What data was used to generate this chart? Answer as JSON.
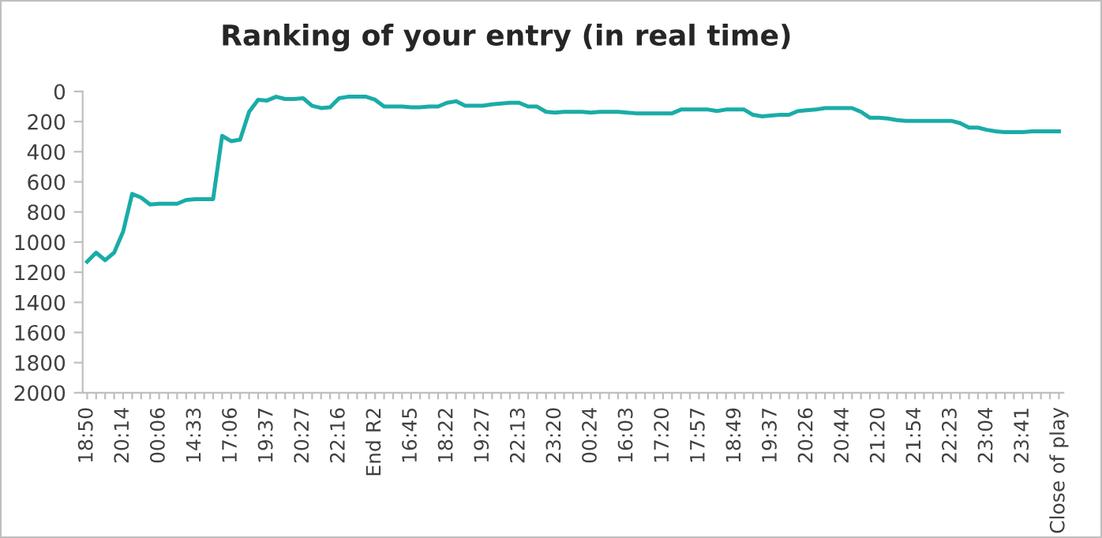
{
  "chart_data": {
    "type": "line",
    "title": "Ranking of your entry (in real time)",
    "categories": [
      "18:50",
      null,
      null,
      null,
      "20:14",
      null,
      null,
      null,
      "00:06",
      null,
      null,
      null,
      "14:33",
      null,
      null,
      null,
      "17:06",
      null,
      null,
      null,
      "19:37",
      null,
      null,
      null,
      "20:27",
      null,
      null,
      null,
      "22:16",
      null,
      null,
      null,
      "End R2",
      null,
      null,
      null,
      "16:45",
      null,
      null,
      null,
      "18:22",
      null,
      null,
      null,
      "19:27",
      null,
      null,
      null,
      "22:13",
      null,
      null,
      null,
      "23:20",
      null,
      null,
      null,
      "00:24",
      null,
      null,
      null,
      "16:03",
      null,
      null,
      null,
      "17:20",
      null,
      null,
      null,
      "17:57",
      null,
      null,
      null,
      "18:49",
      null,
      null,
      null,
      "19:37",
      null,
      null,
      null,
      "20:26",
      null,
      null,
      null,
      "20:44",
      null,
      null,
      null,
      "21:20",
      null,
      null,
      null,
      "21:54",
      null,
      null,
      null,
      "22:23",
      null,
      null,
      null,
      "23:04",
      null,
      null,
      null,
      "23:41",
      null,
      null,
      null,
      "Close of play"
    ],
    "series": [
      {
        "color": "#1aaca8",
        "values": [
          1130,
          1070,
          1120,
          1070,
          930,
          680,
          705,
          750,
          745,
          745,
          745,
          720,
          715,
          715,
          715,
          295,
          330,
          320,
          135,
          55,
          60,
          35,
          50,
          50,
          45,
          95,
          110,
          105,
          45,
          35,
          35,
          35,
          55,
          100,
          100,
          100,
          105,
          105,
          100,
          100,
          75,
          65,
          95,
          95,
          95,
          85,
          80,
          75,
          75,
          100,
          100,
          135,
          140,
          135,
          135,
          135,
          140,
          135,
          135,
          135,
          140,
          145,
          145,
          145,
          145,
          145,
          120,
          120,
          120,
          120,
          130,
          120,
          120,
          120,
          155,
          165,
          160,
          155,
          155,
          130,
          125,
          120,
          110,
          110,
          110,
          110,
          135,
          175,
          175,
          180,
          190,
          195,
          195,
          195,
          195,
          195,
          195,
          210,
          240,
          240,
          255,
          265,
          270,
          270,
          270,
          265,
          265,
          265,
          265
        ]
      }
    ],
    "ylim": [
      2000,
      0
    ],
    "yticks": [
      0,
      200,
      400,
      600,
      800,
      1000,
      1200,
      1400,
      1600,
      1800,
      2000
    ],
    "grid": false,
    "legend": false,
    "marker": "none",
    "line_style": "solid"
  }
}
